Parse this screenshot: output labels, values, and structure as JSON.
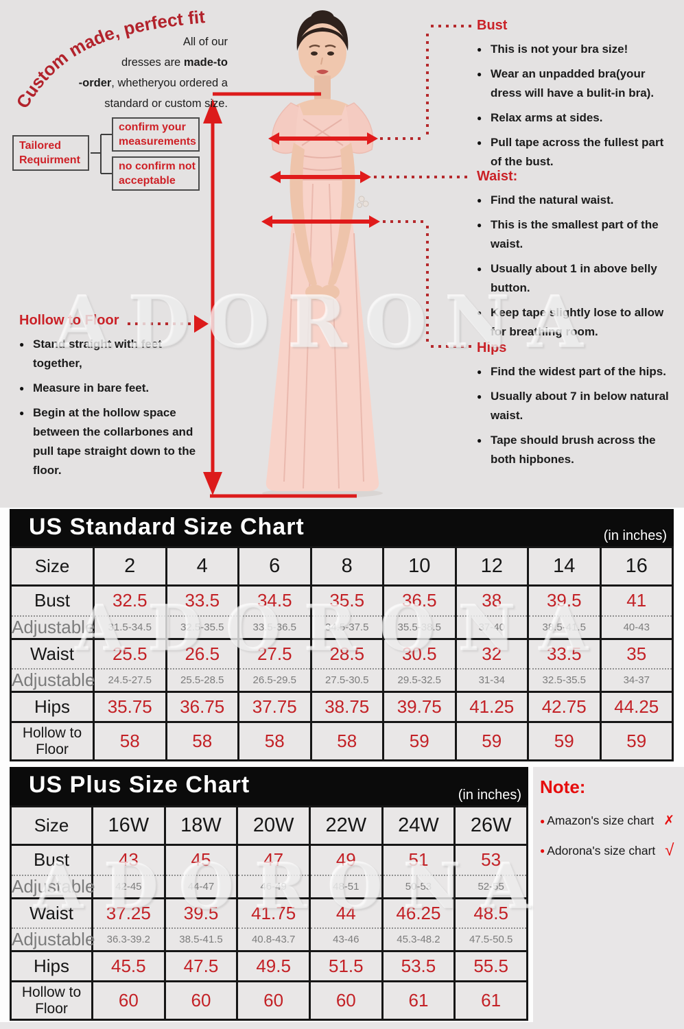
{
  "watermark": "ADORONA",
  "top": {
    "curved_title": "Custom made, perfect fit",
    "intro": {
      "line1": "All of our",
      "line2_pre": "dresses are ",
      "line2_bold": "made-to",
      "line3_bold": "-order",
      "line3_post": ", whetheryou ordered a",
      "line4": "standard or custom size."
    },
    "flowchart": {
      "root": "Tailored Requirment",
      "branch1": "confirm your measurements",
      "branch2": "no confirm not acceptable"
    },
    "sections": {
      "bust": {
        "title": "Bust",
        "bullets": [
          "This is not your bra size!",
          "Wear an unpadded bra(your dress will have a bulit-in bra).",
          "Relax arms at sides.",
          "Pull tape across the fullest part of the bust."
        ]
      },
      "waist": {
        "title": "Waist:",
        "bullets": [
          "Find the natural waist.",
          "This is the smallest part of the waist.",
          "Usually about 1 in above belly button.",
          "Keep tape slightly lose to allow for breathing room."
        ]
      },
      "hips": {
        "title": "Hips",
        "bullets": [
          "Find the widest part of the hips.",
          "Usually about 7 in below natural waist.",
          "Tape should brush across the both hipbones."
        ]
      },
      "hollow": {
        "title": "Hollow to Floor",
        "bullets": [
          "Stand straight with feet together,",
          "Measure in bare feet.",
          "Begin at the hollow space between the collarbones and pull tape straight down to the floor."
        ]
      }
    }
  },
  "standard_chart": {
    "title": "US Standard Size Chart",
    "units": "(in inches)",
    "size_label": "Size",
    "sizes": [
      "2",
      "4",
      "6",
      "8",
      "10",
      "12",
      "14",
      "16"
    ],
    "rows": [
      {
        "label": "Bust",
        "values": [
          "32.5",
          "33.5",
          "34.5",
          "35.5",
          "36.5",
          "38",
          "39.5",
          "41"
        ],
        "adjustable": {
          "label": "Adjustable",
          "values": [
            "31.5-34.5",
            "32.5-35.5",
            "33.5-36.5",
            "34.5-37.5",
            "35.5-38.5",
            "37-40",
            "38.5-41.5",
            "40-43"
          ]
        }
      },
      {
        "label": "Waist",
        "values": [
          "25.5",
          "26.5",
          "27.5",
          "28.5",
          "30.5",
          "32",
          "33.5",
          "35"
        ],
        "adjustable": {
          "label": "Adjustable",
          "values": [
            "24.5-27.5",
            "25.5-28.5",
            "26.5-29.5",
            "27.5-30.5",
            "29.5-32.5",
            "31-34",
            "32.5-35.5",
            "34-37"
          ]
        }
      },
      {
        "label": "Hips",
        "values": [
          "35.75",
          "36.75",
          "37.75",
          "38.75",
          "39.75",
          "41.25",
          "42.75",
          "44.25"
        ]
      },
      {
        "label": "Hollow to Floor",
        "values": [
          "58",
          "58",
          "58",
          "58",
          "59",
          "59",
          "59",
          "59"
        ]
      }
    ]
  },
  "plus_chart": {
    "title": "US Plus Size Chart",
    "units": "(in inches)",
    "size_label": "Size",
    "sizes": [
      "16W",
      "18W",
      "20W",
      "22W",
      "24W",
      "26W"
    ],
    "rows": [
      {
        "label": "Bust",
        "values": [
          "43",
          "45",
          "47",
          "49",
          "51",
          "53"
        ],
        "adjustable": {
          "label": "Adjustable",
          "values": [
            "42-45",
            "44-47",
            "46-49",
            "48-51",
            "50-53",
            "52-55"
          ]
        }
      },
      {
        "label": "Waist",
        "values": [
          "37.25",
          "39.5",
          "41.75",
          "44",
          "46.25",
          "48.5"
        ],
        "adjustable": {
          "label": "Adjustable",
          "values": [
            "36.3-39.2",
            "38.5-41.5",
            "40.8-43.7",
            "43-46",
            "45.3-48.2",
            "47.5-50.5"
          ]
        }
      },
      {
        "label": "Hips",
        "values": [
          "45.5",
          "47.5",
          "49.5",
          "51.5",
          "53.5",
          "55.5"
        ]
      },
      {
        "label": "Hollow to Floor",
        "values": [
          "60",
          "60",
          "60",
          "60",
          "61",
          "61"
        ]
      }
    ]
  },
  "note": {
    "title": "Note:",
    "items": [
      {
        "text": "Amazon's size chart",
        "mark": "✗"
      },
      {
        "text": "Adorona's size chart",
        "mark": "√"
      }
    ]
  }
}
